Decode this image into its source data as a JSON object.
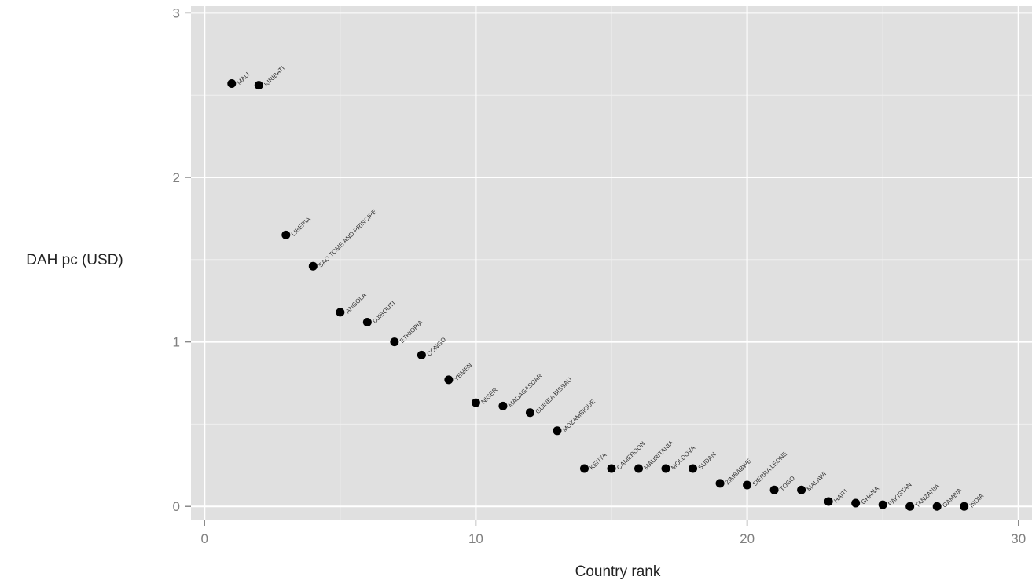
{
  "chart_data": {
    "type": "scatter",
    "title": "",
    "xlabel": "Country rank",
    "ylabel": "DAH pc (USD)",
    "xlim": [
      -0.5,
      30.5
    ],
    "ylim": [
      -0.08,
      3.04
    ],
    "x_ticks": [
      0,
      10,
      20,
      30
    ],
    "y_ticks": [
      0,
      1,
      2,
      3
    ],
    "grid": true,
    "colors": {
      "panel": "#e0e0e0",
      "grid": "#ffffff",
      "point": "#000000"
    },
    "points": [
      {
        "x": 1,
        "y": 2.57,
        "label": "MALI"
      },
      {
        "x": 2,
        "y": 2.56,
        "label": "KIRIBATI"
      },
      {
        "x": 3,
        "y": 1.65,
        "label": "LIBERIA"
      },
      {
        "x": 4,
        "y": 1.46,
        "label": "SAO TOME AND PRINCIPE"
      },
      {
        "x": 5,
        "y": 1.18,
        "label": "ANGOLA"
      },
      {
        "x": 6,
        "y": 1.12,
        "label": "DJIBOUTI"
      },
      {
        "x": 7,
        "y": 1.0,
        "label": "ETHIOPIA"
      },
      {
        "x": 8,
        "y": 0.92,
        "label": "CONGO"
      },
      {
        "x": 9,
        "y": 0.77,
        "label": "YEMEN"
      },
      {
        "x": 10,
        "y": 0.63,
        "label": "NIGER"
      },
      {
        "x": 11,
        "y": 0.61,
        "label": "MADAGASCAR"
      },
      {
        "x": 12,
        "y": 0.57,
        "label": "GUINEA BISSAU"
      },
      {
        "x": 13,
        "y": 0.46,
        "label": "MOZAMBIQUE"
      },
      {
        "x": 14,
        "y": 0.23,
        "label": "KENYA"
      },
      {
        "x": 15,
        "y": 0.23,
        "label": "CAMEROON"
      },
      {
        "x": 16,
        "y": 0.23,
        "label": "MAURITANIA"
      },
      {
        "x": 17,
        "y": 0.23,
        "label": "MOLDOVA"
      },
      {
        "x": 18,
        "y": 0.23,
        "label": "SUDAN"
      },
      {
        "x": 19,
        "y": 0.14,
        "label": "ZIMBABWE"
      },
      {
        "x": 20,
        "y": 0.13,
        "label": "SIERRA LEONE"
      },
      {
        "x": 21,
        "y": 0.1,
        "label": "TOGO"
      },
      {
        "x": 22,
        "y": 0.1,
        "label": "MALAWI"
      },
      {
        "x": 23,
        "y": 0.03,
        "label": "HAITI"
      },
      {
        "x": 24,
        "y": 0.02,
        "label": "GHANA"
      },
      {
        "x": 25,
        "y": 0.01,
        "label": "PAKISTAN"
      },
      {
        "x": 26,
        "y": 0.0,
        "label": "TANZANIA"
      },
      {
        "x": 27,
        "y": 0.0,
        "label": "GAMBIA"
      },
      {
        "x": 28,
        "y": 0.0,
        "label": "INDIA"
      }
    ]
  }
}
